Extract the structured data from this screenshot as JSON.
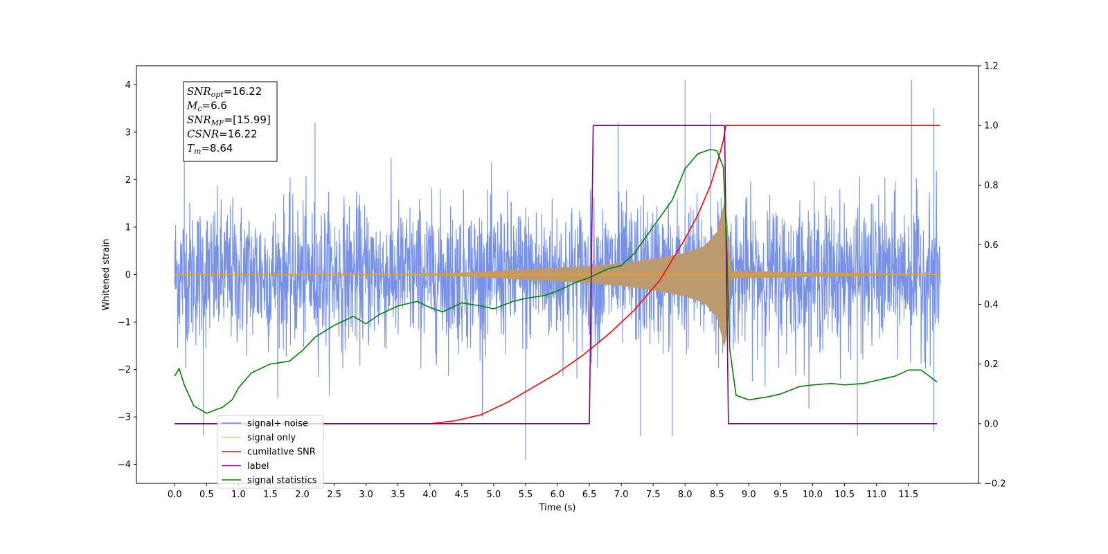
{
  "chart_data": {
    "type": "line",
    "xlabel": "Time (s)",
    "ylabel": "Whitened strain",
    "xlim": [
      -0.6,
      12.6
    ],
    "ylim": [
      -4.4,
      4.4
    ],
    "y2lim": [
      -0.2,
      1.2
    ],
    "x_ticks": [
      0.0,
      0.5,
      1.0,
      1.5,
      2.0,
      2.5,
      3.0,
      3.5,
      4.0,
      4.5,
      5.0,
      5.5,
      6.0,
      6.5,
      7.0,
      7.5,
      8.0,
      8.5,
      9.0,
      9.5,
      10.0,
      10.5,
      11.0,
      11.5
    ],
    "x_tick_labels": [
      "0.0",
      "0.5",
      "1.0",
      "1.5",
      "2.0",
      "2.5",
      "3.0",
      "3.5",
      "4.0",
      "4.5",
      "5.0",
      "5.5",
      "6.0",
      "6.5",
      "7.0",
      "7.5",
      "8.0",
      "8.5",
      "9.0",
      "9.5",
      "10.0",
      "10.5",
      "11.0",
      "11.5"
    ],
    "y_ticks": [
      -4,
      -3,
      -2,
      -1,
      0,
      1,
      2,
      3,
      4
    ],
    "y_tick_labels": [
      "−4",
      "−3",
      "−2",
      "−1",
      "0",
      "1",
      "2",
      "3",
      "4"
    ],
    "y2_ticks": [
      -0.2,
      0.0,
      0.2,
      0.4,
      0.6,
      0.8,
      1.0,
      1.2
    ],
    "y2_tick_labels": [
      "−0.2",
      "0.0",
      "0.2",
      "0.4",
      "0.6",
      "0.8",
      "1.0",
      "1.2"
    ],
    "legend_position": "lower-left",
    "legend": [
      "signal+ noise",
      "signal only",
      "cumilative SNR",
      "label",
      "signal statistics"
    ],
    "colors": {
      "signal_noise": "#6b88e6",
      "signal_only": "#ffa500",
      "cumulative_snr": "#ff0000",
      "label": "#800080",
      "signal_statistics": "#008000",
      "signal_fill": "#bb9a70"
    },
    "annotation": [
      {
        "sym": "SNR",
        "sub": "opt",
        "value": "=16.22"
      },
      {
        "sym": "M",
        "sub": "c",
        "value": "=6.6"
      },
      {
        "sym": "SNR",
        "sub": "MF",
        "value": "=[15.99]"
      },
      {
        "sym": "CSNR",
        "sub": "",
        "value": "=16.22"
      },
      {
        "sym": "T",
        "sub": "m",
        "value": "=8.64"
      }
    ],
    "series": [
      {
        "key": "signal_noise",
        "axis": "left",
        "x_range": [
          0.0,
          12.0
        ],
        "typical_range": [
          -1.3,
          1.3
        ],
        "noise_std": 0.75,
        "extreme_peaks": [
          [
            0.15,
            2.9
          ],
          [
            0.45,
            -3.4
          ],
          [
            2.2,
            3.2
          ],
          [
            5.5,
            -3.9
          ],
          [
            6.95,
            3.2
          ],
          [
            7.3,
            -3.4
          ],
          [
            7.8,
            -3.4
          ],
          [
            8.0,
            4.1
          ],
          [
            8.4,
            3.4
          ],
          [
            10.7,
            -3.4
          ],
          [
            11.55,
            4.1
          ],
          [
            11.9,
            3.5
          ],
          [
            11.9,
            -3.3
          ]
        ]
      },
      {
        "key": "signal_only",
        "axis": "left",
        "merger_time": 8.64,
        "envelope": [
          [
            0.0,
            0.01
          ],
          [
            3.5,
            0.015
          ],
          [
            4.5,
            0.04
          ],
          [
            5.5,
            0.11
          ],
          [
            6.5,
            0.18
          ],
          [
            7.0,
            0.24
          ],
          [
            7.5,
            0.33
          ],
          [
            8.0,
            0.46
          ],
          [
            8.3,
            0.6
          ],
          [
            8.5,
            0.9
          ],
          [
            8.62,
            1.55
          ],
          [
            8.66,
            1.2
          ],
          [
            8.72,
            0.08
          ],
          [
            12.0,
            0.005
          ]
        ]
      },
      {
        "key": "cumulative_snr",
        "axis": "right",
        "x": [
          0.0,
          4.0,
          4.4,
          4.8,
          5.2,
          5.6,
          6.0,
          6.4,
          6.8,
          7.2,
          7.6,
          8.0,
          8.2,
          8.4,
          8.5,
          8.6,
          8.64,
          12.0
        ],
        "y": [
          0.0,
          0.0,
          0.01,
          0.03,
          0.07,
          0.12,
          0.17,
          0.23,
          0.3,
          0.38,
          0.48,
          0.62,
          0.7,
          0.8,
          0.87,
          0.95,
          1.0,
          1.0
        ]
      },
      {
        "key": "label",
        "axis": "right",
        "x": [
          0.0,
          6.5,
          6.56,
          8.62,
          8.68,
          11.95
        ],
        "y": [
          0.0,
          0.0,
          1.0,
          1.0,
          0.0,
          0.0
        ]
      },
      {
        "key": "signal_statistics",
        "axis": "right",
        "x": [
          0.0,
          0.07,
          0.15,
          0.3,
          0.5,
          0.75,
          0.9,
          1.0,
          1.2,
          1.5,
          1.8,
          2.0,
          2.2,
          2.5,
          2.8,
          3.0,
          3.2,
          3.5,
          3.8,
          4.0,
          4.2,
          4.5,
          4.8,
          5.0,
          5.3,
          5.5,
          5.8,
          6.0,
          6.3,
          6.5,
          6.8,
          7.0,
          7.2,
          7.5,
          7.8,
          8.0,
          8.2,
          8.4,
          8.5,
          8.6,
          8.65,
          8.7,
          8.8,
          9.0,
          9.3,
          9.5,
          9.8,
          10.0,
          10.3,
          10.5,
          10.8,
          11.0,
          11.3,
          11.5,
          11.7,
          11.95
        ],
        "y": [
          0.16,
          0.185,
          0.13,
          0.06,
          0.035,
          0.055,
          0.08,
          0.12,
          0.17,
          0.2,
          0.21,
          0.245,
          0.29,
          0.33,
          0.36,
          0.335,
          0.365,
          0.395,
          0.41,
          0.39,
          0.375,
          0.405,
          0.395,
          0.385,
          0.41,
          0.42,
          0.43,
          0.445,
          0.475,
          0.49,
          0.52,
          0.53,
          0.57,
          0.66,
          0.75,
          0.855,
          0.905,
          0.92,
          0.915,
          0.86,
          0.62,
          0.25,
          0.095,
          0.08,
          0.09,
          0.1,
          0.125,
          0.13,
          0.135,
          0.13,
          0.135,
          0.145,
          0.16,
          0.18,
          0.18,
          0.14
        ]
      }
    ]
  }
}
